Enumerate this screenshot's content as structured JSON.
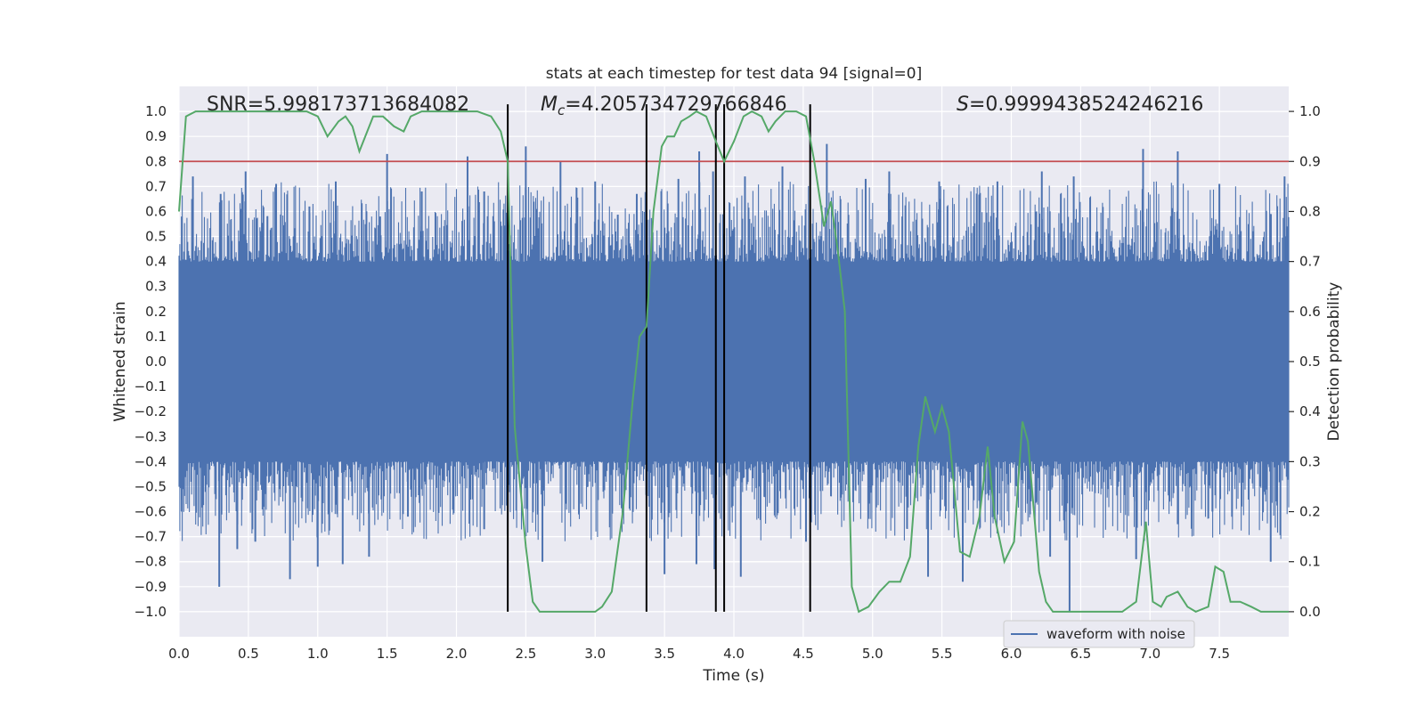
{
  "chart_data": {
    "type": "line",
    "title": "stats at each timestep for test data 94 [signal=0]",
    "xlabel": "Time (s)",
    "ylabel_left": "Whitened strain",
    "ylabel_right": "Detection probability",
    "xlim": [
      0.0,
      8.0
    ],
    "ylim_left": [
      -1.1,
      1.1
    ],
    "ylim_right": [
      -0.05,
      1.05
    ],
    "x_ticks": [
      0.0,
      0.5,
      1.0,
      1.5,
      2.0,
      2.5,
      3.0,
      3.5,
      4.0,
      4.5,
      5.0,
      5.5,
      6.0,
      6.5,
      7.0,
      7.5
    ],
    "x_tick_labels": [
      "0.0",
      "0.5",
      "1.0",
      "1.5",
      "2.0",
      "2.5",
      "3.0",
      "3.5",
      "4.0",
      "4.5",
      "5.0",
      "5.5",
      "6.0",
      "6.5",
      "7.0",
      "7.5"
    ],
    "y_left_ticks": [
      1.0,
      0.9,
      0.8,
      0.7,
      0.6,
      0.5,
      0.4,
      0.3,
      0.2,
      0.1,
      0.0,
      -0.1,
      -0.2,
      -0.3,
      -0.4,
      -0.5,
      -0.6,
      -0.7,
      -0.8,
      -0.9,
      -1.0
    ],
    "y_left_tick_labels": [
      "1.0",
      "0.9",
      "0.8",
      "0.7",
      "0.6",
      "0.5",
      "0.4",
      "0.3",
      "0.2",
      "0.1",
      "0.0",
      "−0.1",
      "−0.2",
      "−0.3",
      "−0.4",
      "−0.5",
      "−0.6",
      "−0.7",
      "−0.8",
      "−0.9",
      "−1.0"
    ],
    "y_right_ticks": [
      1.0,
      0.9,
      0.8,
      0.7,
      0.6,
      0.5,
      0.4,
      0.3,
      0.2,
      0.1,
      0.0
    ],
    "y_right_tick_labels": [
      "1.0",
      "0.9",
      "0.8",
      "0.7",
      "0.6",
      "0.5",
      "0.4",
      "0.3",
      "0.2",
      "0.1",
      "0.0"
    ],
    "annotations": {
      "snr": "SNR=5.998173713684082",
      "mc_symbol": "M",
      "mc_subscript": "c",
      "mc_value": "=4.205734729766846",
      "s_symbol": "S",
      "s_value": "=0.9999438524246216"
    },
    "threshold_line": {
      "y_right": 0.9,
      "color": "#c44e52"
    },
    "vertical_lines_x": [
      2.37,
      3.37,
      3.87,
      3.93,
      4.55
    ],
    "series": [
      {
        "name": "waveform with noise",
        "axis": "left",
        "color": "#4c72b0",
        "description_values": {
          "band_envelope": 0.38,
          "peaks_positive": [
            [
              0.02,
              0.58
            ],
            [
              0.1,
              0.74
            ],
            [
              0.3,
              0.67
            ],
            [
              0.48,
              0.76
            ],
            [
              0.7,
              0.71
            ],
            [
              0.94,
              0.62
            ],
            [
              1.13,
              0.72
            ],
            [
              1.45,
              0.58
            ],
            [
              1.5,
              0.83
            ],
            [
              1.75,
              0.68
            ],
            [
              2.08,
              0.82
            ],
            [
              2.2,
              0.68
            ],
            [
              2.5,
              0.86
            ],
            [
              2.75,
              0.8
            ],
            [
              3.0,
              0.72
            ],
            [
              3.3,
              0.67
            ],
            [
              3.6,
              0.73
            ],
            [
              3.75,
              0.84
            ],
            [
              3.85,
              0.76
            ],
            [
              4.08,
              0.74
            ],
            [
              4.35,
              0.78
            ],
            [
              4.67,
              0.87
            ],
            [
              4.95,
              0.73
            ],
            [
              5.12,
              0.76
            ],
            [
              5.48,
              0.72
            ],
            [
              5.9,
              0.72
            ],
            [
              6.22,
              0.76
            ],
            [
              6.45,
              0.74
            ],
            [
              6.95,
              0.85
            ],
            [
              7.2,
              0.84
            ],
            [
              7.5,
              0.71
            ],
            [
              7.97,
              0.74
            ]
          ],
          "peaks_negative": [
            [
              0.02,
              -0.6
            ],
            [
              0.29,
              -0.9
            ],
            [
              0.42,
              -0.75
            ],
            [
              0.55,
              -0.72
            ],
            [
              0.8,
              -0.87
            ],
            [
              1.0,
              -0.82
            ],
            [
              1.18,
              -0.81
            ],
            [
              1.37,
              -0.78
            ],
            [
              1.65,
              -0.62
            ],
            [
              2.2,
              -0.67
            ],
            [
              2.62,
              -0.8
            ],
            [
              3.5,
              -0.85
            ],
            [
              3.73,
              -0.81
            ],
            [
              3.86,
              -0.83
            ],
            [
              4.05,
              -0.86
            ],
            [
              4.52,
              -0.72
            ],
            [
              5.4,
              -0.86
            ],
            [
              5.65,
              -0.88
            ],
            [
              5.88,
              -0.63
            ],
            [
              6.28,
              -0.78
            ],
            [
              6.42,
              -1.0
            ],
            [
              6.9,
              -0.79
            ],
            [
              7.2,
              -0.65
            ],
            [
              7.45,
              -0.6
            ],
            [
              7.87,
              -0.8
            ]
          ]
        }
      },
      {
        "name": "",
        "axis": "right",
        "color": "#55a868",
        "x": [
          0.0,
          0.05,
          0.12,
          0.3,
          0.5,
          0.7,
          0.92,
          1.0,
          1.07,
          1.15,
          1.2,
          1.25,
          1.3,
          1.4,
          1.47,
          1.55,
          1.62,
          1.67,
          1.75,
          1.85,
          2.0,
          2.15,
          2.25,
          2.32,
          2.37,
          2.42,
          2.5,
          2.55,
          2.6,
          2.7,
          2.8,
          2.9,
          3.0,
          3.05,
          3.12,
          3.2,
          3.27,
          3.32,
          3.37,
          3.42,
          3.48,
          3.52,
          3.57,
          3.62,
          3.68,
          3.73,
          3.8,
          3.87,
          3.93,
          4.0,
          4.07,
          4.13,
          4.2,
          4.25,
          4.3,
          4.37,
          4.45,
          4.52,
          4.58,
          4.65,
          4.7,
          4.75,
          4.8,
          4.85,
          4.9,
          4.97,
          5.05,
          5.12,
          5.2,
          5.27,
          5.33,
          5.38,
          5.45,
          5.5,
          5.55,
          5.63,
          5.7,
          5.77,
          5.83,
          5.88,
          5.95,
          6.02,
          6.08,
          6.12,
          6.2,
          6.25,
          6.3,
          6.35,
          6.42,
          6.5,
          6.6,
          6.7,
          6.8,
          6.9,
          6.97,
          7.02,
          7.08,
          7.12,
          7.2,
          7.27,
          7.33,
          7.42,
          7.47,
          7.53,
          7.58,
          7.65,
          7.73,
          7.8,
          7.92,
          8.0
        ],
        "y": [
          0.8,
          0.99,
          1.0,
          1.0,
          1.0,
          1.0,
          1.0,
          0.99,
          0.95,
          0.98,
          0.99,
          0.97,
          0.92,
          0.99,
          0.99,
          0.97,
          0.96,
          0.99,
          1.0,
          1.0,
          1.0,
          1.0,
          0.99,
          0.96,
          0.9,
          0.37,
          0.13,
          0.02,
          0.0,
          0.0,
          0.0,
          0.0,
          0.0,
          0.01,
          0.04,
          0.2,
          0.42,
          0.55,
          0.57,
          0.8,
          0.93,
          0.95,
          0.95,
          0.98,
          0.99,
          1.0,
          0.99,
          0.94,
          0.9,
          0.94,
          0.99,
          1.0,
          0.99,
          0.96,
          0.98,
          1.0,
          1.0,
          0.99,
          0.9,
          0.77,
          0.82,
          0.72,
          0.6,
          0.05,
          0.0,
          0.01,
          0.04,
          0.06,
          0.06,
          0.11,
          0.33,
          0.43,
          0.36,
          0.41,
          0.36,
          0.12,
          0.11,
          0.19,
          0.33,
          0.19,
          0.1,
          0.14,
          0.38,
          0.34,
          0.08,
          0.02,
          0.0,
          0.0,
          0.0,
          0.0,
          0.0,
          0.0,
          0.0,
          0.02,
          0.18,
          0.02,
          0.01,
          0.03,
          0.04,
          0.01,
          0.0,
          0.01,
          0.09,
          0.08,
          0.02,
          0.02,
          0.01,
          0.0,
          0.0,
          0.0
        ]
      }
    ],
    "legend": {
      "placement": "lower right",
      "entries": [
        "waveform with noise"
      ]
    },
    "grid": true,
    "background": "#eaeaf2"
  }
}
